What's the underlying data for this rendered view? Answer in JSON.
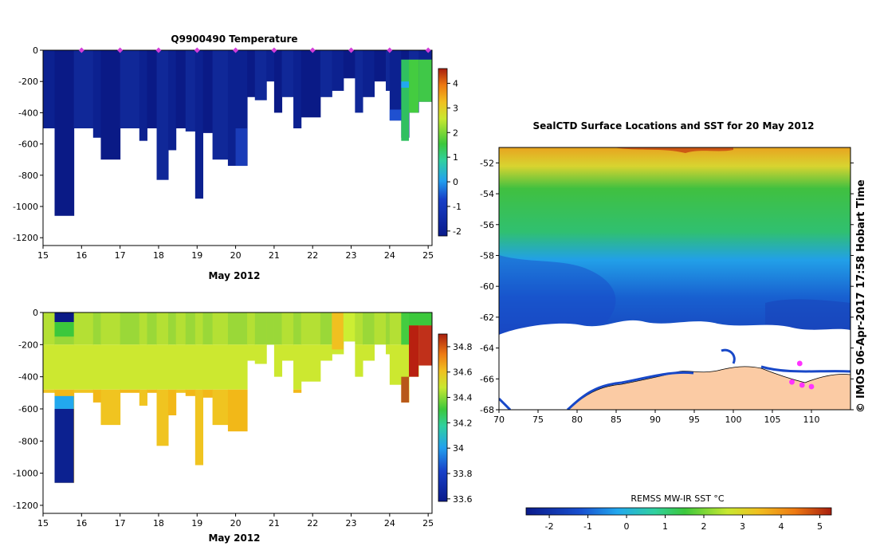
{
  "chart_data": [
    {
      "id": "temperature-section",
      "type": "heatmap",
      "title": "Q9900490  Temperature",
      "xlabel": "May 2012",
      "ylabel": "",
      "xlim": [
        15,
        25.1
      ],
      "ylim": [
        -1250,
        0
      ],
      "x_ticks": [
        "15",
        "16",
        "17",
        "18",
        "19",
        "20",
        "21",
        "22",
        "23",
        "24",
        "25"
      ],
      "y_ticks": [
        "0",
        "-200",
        "-400",
        "-600",
        "-800",
        "-1000",
        "-1200"
      ],
      "colorbar": {
        "min": -2.2,
        "max": 4.6,
        "ticks": [
          "-2",
          "-1",
          "0",
          "1",
          "2",
          "3",
          "4"
        ]
      },
      "profile_markers": [
        16.0,
        17.0,
        18.0,
        19.0,
        20.0,
        21.0,
        22.0,
        23.0,
        24.0,
        25.0
      ],
      "colors": {
        "marker": "#d23cd8",
        "cold": "#0a1f8c",
        "warm": "#33cc33"
      }
    },
    {
      "id": "salinity-section",
      "type": "heatmap",
      "title": "",
      "xlabel": "May 2012",
      "ylabel": "",
      "xlim": [
        15,
        25.1
      ],
      "ylim": [
        -1250,
        0
      ],
      "x_ticks": [
        "15",
        "16",
        "17",
        "18",
        "19",
        "20",
        "21",
        "22",
        "23",
        "24",
        "25"
      ],
      "y_ticks": [
        "0",
        "-200",
        "-400",
        "-600",
        "-800",
        "-1000",
        "-1200"
      ],
      "colorbar": {
        "min": 33.58,
        "max": 34.9,
        "ticks": [
          "33.6",
          "33.8",
          "34",
          "34.2",
          "34.4",
          "34.6",
          "34.8"
        ]
      },
      "colors": {
        "fresh": "#0a1f8c",
        "mid": "#ccee33",
        "salty": "#b82010"
      }
    },
    {
      "id": "sst-map",
      "type": "heatmap",
      "title": "SealCTD Surface Locations and SST for 20 May 2012",
      "xlim": [
        70,
        115
      ],
      "ylim": [
        -68,
        -51
      ],
      "x_ticks": [
        "70",
        "75",
        "80",
        "85",
        "90",
        "95",
        "100",
        "105",
        "110"
      ],
      "y_ticks": [
        "-52",
        "-54",
        "-56",
        "-58",
        "-60",
        "-62",
        "-64",
        "-66",
        "-68"
      ],
      "colorbar": {
        "label": "REMSS MW-IR SST °C",
        "min": -2.6,
        "max": 5.3,
        "ticks": [
          "-2",
          "-1",
          "0",
          "1",
          "2",
          "3",
          "4",
          "5"
        ]
      },
      "seal_locations": [
        [
          108.5,
          -65.0
        ],
        [
          107.5,
          -66.2
        ],
        [
          108.8,
          -66.4
        ],
        [
          110.0,
          -66.5
        ]
      ],
      "colors": {
        "land": "#fbcba4",
        "marker": "#ff33ff"
      }
    }
  ],
  "credit": "IMOS 06-Apr-2017 17:58 Hobart Time",
  "copyright_symbol": "©"
}
